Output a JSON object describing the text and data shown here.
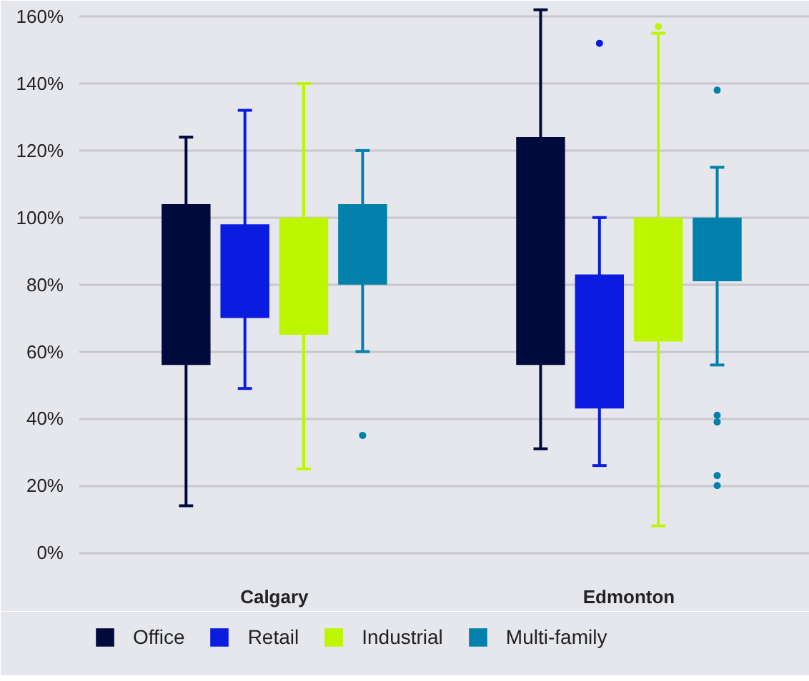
{
  "chart_data": {
    "type": "box",
    "categories": [
      "Calgary",
      "Edmonton"
    ],
    "series": [
      {
        "name": "Office",
        "color": "#000a3c",
        "boxes": [
          {
            "low": 14,
            "q1": 56,
            "q3": 104,
            "high": 124
          },
          {
            "low": 31,
            "q1": 56,
            "q3": 124,
            "high": 162
          }
        ]
      },
      {
        "name": "Retail",
        "color": "#0a1ce0",
        "boxes": [
          {
            "low": 49,
            "q1": 70,
            "q3": 98,
            "high": 132
          },
          {
            "low": 26,
            "q1": 43,
            "q3": 83,
            "high": 100,
            "outliers": [
              152
            ]
          }
        ]
      },
      {
        "name": "Industrial",
        "color": "#bef500",
        "boxes": [
          {
            "low": 25,
            "q1": 65,
            "q3": 100,
            "high": 140
          },
          {
            "low": 8,
            "q1": 63,
            "q3": 100,
            "high": 155,
            "outliers": [
              157
            ]
          }
        ]
      },
      {
        "name": "Multi-family",
        "color": "#0080aa",
        "boxes": [
          {
            "low": 60,
            "q1": 80,
            "q3": 104,
            "high": 120,
            "outliers": [
              35
            ]
          },
          {
            "low": 56,
            "q1": 81,
            "q3": 100,
            "high": 115,
            "outliers": [
              138,
              41,
              39,
              23,
              20
            ]
          }
        ]
      }
    ],
    "ylim": [
      -4,
      163
    ],
    "yticks": [
      {
        "value": 0,
        "label": "0%"
      },
      {
        "value": 20,
        "label": "20%"
      },
      {
        "value": 40,
        "label": "40%"
      },
      {
        "value": 60,
        "label": "60%"
      },
      {
        "value": 80,
        "label": "80%"
      },
      {
        "value": 100,
        "label": "100%"
      },
      {
        "value": 120,
        "label": "120%"
      },
      {
        "value": 140,
        "label": "140%"
      },
      {
        "value": 160,
        "label": "160%"
      }
    ],
    "grid": "y",
    "legend": "bottom"
  }
}
